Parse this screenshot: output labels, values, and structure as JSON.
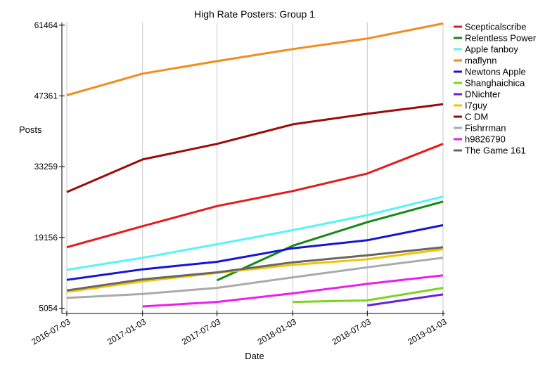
{
  "chart_data": {
    "type": "line",
    "title": "High Rate Posters: Group 1",
    "xlabel": "Date",
    "ylabel": "Posts",
    "x_ticks": [
      "2016-07-03",
      "2017-01-03",
      "2017-07-03",
      "2018-01-03",
      "2018-07-03",
      "2019-01-03"
    ],
    "y_ticks": [
      5054,
      19156,
      33259,
      47361,
      61464
    ],
    "ylim": [
      4000,
      62000
    ],
    "grid": "vertical",
    "legend_position": "right",
    "series": [
      {
        "name": "Scepticalscribe",
        "color": "#e41a1c",
        "points": [
          [
            "2016-07-03",
            17200
          ],
          [
            "2017-01-03",
            21400
          ],
          [
            "2017-07-03",
            25400
          ],
          [
            "2018-01-03",
            28400
          ],
          [
            "2018-07-03",
            31900
          ],
          [
            "2019-01-03",
            37800
          ]
        ]
      },
      {
        "name": "Relentless Power",
        "color": "#138a13",
        "points": [
          [
            "2017-07-03",
            10600
          ],
          [
            "2018-01-03",
            17500
          ],
          [
            "2018-07-03",
            22200
          ],
          [
            "2019-01-03",
            26300
          ]
        ]
      },
      {
        "name": "Apple fanboy",
        "color": "#55f5f5",
        "points": [
          [
            "2016-07-03",
            12700
          ],
          [
            "2017-01-03",
            15100
          ],
          [
            "2017-07-03",
            17800
          ],
          [
            "2018-01-03",
            20600
          ],
          [
            "2018-07-03",
            23600
          ],
          [
            "2019-01-03",
            27300
          ]
        ]
      },
      {
        "name": "maflynn",
        "color": "#f28c1c",
        "points": [
          [
            "2016-07-03",
            47500
          ],
          [
            "2017-01-03",
            51800
          ],
          [
            "2017-07-03",
            54300
          ],
          [
            "2018-01-03",
            56700
          ],
          [
            "2018-07-03",
            58800
          ],
          [
            "2019-01-03",
            61800
          ]
        ]
      },
      {
        "name": "Newtons Apple",
        "color": "#1414d6",
        "points": [
          [
            "2016-07-03",
            10700
          ],
          [
            "2017-01-03",
            12800
          ],
          [
            "2017-07-03",
            14300
          ],
          [
            "2018-01-03",
            17000
          ],
          [
            "2018-07-03",
            18600
          ],
          [
            "2019-01-03",
            21600
          ]
        ]
      },
      {
        "name": "Shanghaichica",
        "color": "#7ed321",
        "points": [
          [
            "2018-01-03",
            6300
          ],
          [
            "2018-07-03",
            6600
          ],
          [
            "2019-01-03",
            9100
          ]
        ]
      },
      {
        "name": "DNichter",
        "color": "#6a1ee0",
        "points": [
          [
            "2018-07-03",
            5600
          ],
          [
            "2019-01-03",
            7800
          ]
        ]
      },
      {
        "name": "I7guy",
        "color": "#f7c200",
        "points": [
          [
            "2016-07-03",
            8300
          ],
          [
            "2017-01-03",
            10400
          ],
          [
            "2017-07-03",
            12100
          ],
          [
            "2018-01-03",
            13700
          ],
          [
            "2018-07-03",
            14800
          ],
          [
            "2019-01-03",
            16800
          ]
        ]
      },
      {
        "name": "C DM",
        "color": "#9c0a0a",
        "points": [
          [
            "2016-07-03",
            28200
          ],
          [
            "2017-01-03",
            34700
          ],
          [
            "2017-07-03",
            37800
          ],
          [
            "2018-01-03",
            41700
          ],
          [
            "2018-07-03",
            43800
          ],
          [
            "2019-01-03",
            45700
          ]
        ]
      },
      {
        "name": "Fishrrman",
        "color": "#aaaaaa",
        "points": [
          [
            "2016-07-03",
            7100
          ],
          [
            "2017-01-03",
            7900
          ],
          [
            "2017-07-03",
            9100
          ],
          [
            "2018-01-03",
            11200
          ],
          [
            "2018-07-03",
            13200
          ],
          [
            "2019-01-03",
            15100
          ]
        ]
      },
      {
        "name": "h9826790",
        "color": "#ee1cee",
        "points": [
          [
            "2017-01-03",
            5400
          ],
          [
            "2017-07-03",
            6300
          ],
          [
            "2018-01-03",
            8000
          ],
          [
            "2018-07-03",
            9900
          ],
          [
            "2019-01-03",
            11600
          ]
        ]
      },
      {
        "name": "The Game 161",
        "color": "#666666",
        "points": [
          [
            "2016-07-03",
            8600
          ],
          [
            "2017-01-03",
            10800
          ],
          [
            "2017-07-03",
            12200
          ],
          [
            "2018-01-03",
            14200
          ],
          [
            "2018-07-03",
            15600
          ],
          [
            "2019-01-03",
            17200
          ]
        ]
      }
    ]
  }
}
